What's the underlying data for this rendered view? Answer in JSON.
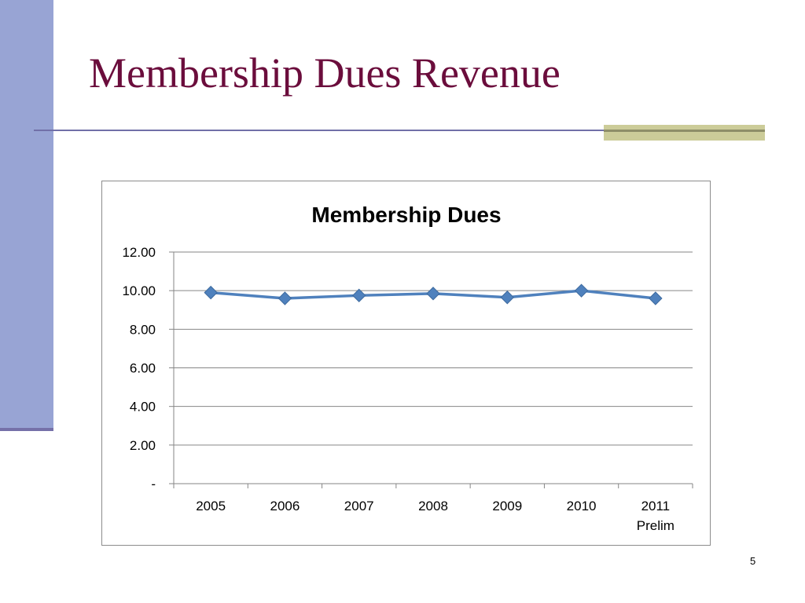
{
  "slide": {
    "title": "Membership Dues Revenue",
    "page_number": "5"
  },
  "colors": {
    "left_bar": "#98a4d4",
    "title": "#6b0d3c",
    "rule": "#7170a8",
    "accent": "#cccc99",
    "series": "#4f81bd"
  },
  "chart_data": {
    "type": "line",
    "title": "Membership Dues",
    "categories": [
      "2005",
      "2006",
      "2007",
      "2008",
      "2009",
      "2010",
      "2011\nPrelim"
    ],
    "series": [
      {
        "values": [
          9.9,
          9.6,
          9.75,
          9.85,
          9.65,
          10.0,
          9.6
        ]
      }
    ],
    "xlabel": "",
    "ylabel": "",
    "ylim": [
      0,
      12
    ],
    "yticks": [
      0,
      2,
      4,
      6,
      8,
      10,
      12
    ],
    "ytick_labels": [
      "-",
      "2.00",
      "4.00",
      "6.00",
      "8.00",
      "10.00",
      "12.00"
    ],
    "grid": true,
    "marker": "diamond",
    "legend": "none"
  }
}
